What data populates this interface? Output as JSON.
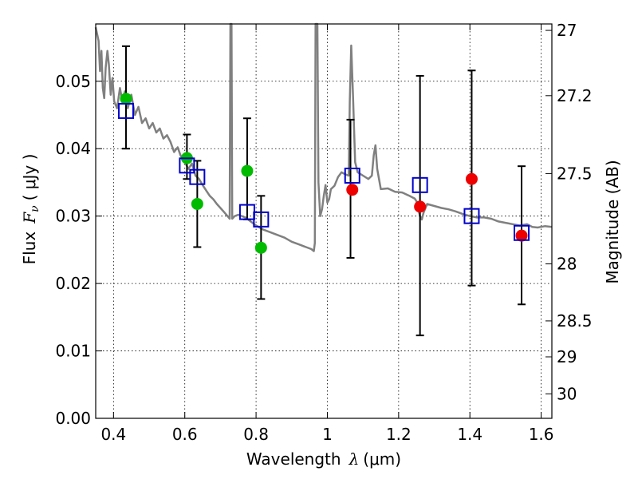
{
  "chart_data": {
    "type": "scatter",
    "xlabel_prefix": "Wavelength",
    "xlabel_symbol": "λ",
    "xlabel_unit": "(μm)",
    "ylabel_prefix": "Flux",
    "ylabel_symbol": "F",
    "ylabel_subscript": "ν",
    "ylabel_unit": "( μJy )",
    "y2label": "Magnitude (AB)",
    "xlim": [
      0.35,
      1.63
    ],
    "ylim": [
      0.0,
      0.0585
    ],
    "grid": true,
    "x_ticks": [
      0.4,
      0.6,
      0.8,
      1.0,
      1.2,
      1.4,
      1.6
    ],
    "x_tick_labels": [
      "0.4",
      "0.6",
      "0.8",
      "1",
      "1.2",
      "1.4",
      "1.6"
    ],
    "y_ticks": [
      0.0,
      0.01,
      0.02,
      0.03,
      0.04,
      0.05
    ],
    "y_tick_labels": [
      "0.00",
      "0.01",
      "0.02",
      "0.03",
      "0.04",
      "0.05"
    ],
    "y2_ticks": [
      27,
      27.2,
      27.5,
      28,
      28.5,
      29,
      30
    ],
    "y2_tick_labels": [
      "27",
      "27.2",
      "27.5",
      "28",
      "28.5",
      "29",
      "30"
    ],
    "colors": {
      "model": "#808080",
      "model_photometry": "#0000cc",
      "green_points": "#00bb00",
      "red_points": "#ee0000",
      "error_bars": "#000000"
    },
    "errorbars": [
      {
        "x": 0.435,
        "low": 0.04,
        "high": 0.0552
      },
      {
        "x": 0.606,
        "low": 0.0355,
        "high": 0.0421
      },
      {
        "x": 0.635,
        "low": 0.0254,
        "high": 0.0382
      },
      {
        "x": 0.775,
        "low": 0.0295,
        "high": 0.0445
      },
      {
        "x": 0.814,
        "low": 0.0177,
        "high": 0.033
      },
      {
        "x": 1.065,
        "low": 0.0238,
        "high": 0.0443
      },
      {
        "x": 1.26,
        "low": 0.0123,
        "high": 0.0508
      },
      {
        "x": 1.405,
        "low": 0.0197,
        "high": 0.0516
      },
      {
        "x": 1.545,
        "low": 0.0169,
        "high": 0.0374
      }
    ],
    "green_points": [
      {
        "x": 0.435,
        "y": 0.0474
      },
      {
        "x": 0.606,
        "y": 0.0386
      },
      {
        "x": 0.635,
        "y": 0.0318
      },
      {
        "x": 0.775,
        "y": 0.0367
      },
      {
        "x": 0.814,
        "y": 0.0253
      }
    ],
    "red_points": [
      {
        "x": 1.07,
        "y": 0.0339
      },
      {
        "x": 1.26,
        "y": 0.0314
      },
      {
        "x": 1.405,
        "y": 0.0355
      },
      {
        "x": 1.545,
        "y": 0.0271
      }
    ],
    "model_photometry": [
      {
        "x": 0.435,
        "y": 0.0456
      },
      {
        "x": 0.606,
        "y": 0.0375
      },
      {
        "x": 0.635,
        "y": 0.0358
      },
      {
        "x": 0.775,
        "y": 0.0306
      },
      {
        "x": 0.814,
        "y": 0.0295
      },
      {
        "x": 1.07,
        "y": 0.036
      },
      {
        "x": 1.26,
        "y": 0.0346
      },
      {
        "x": 1.405,
        "y": 0.03
      },
      {
        "x": 1.545,
        "y": 0.0275
      }
    ],
    "model_sed": [
      [
        0.35,
        0.058
      ],
      [
        0.358,
        0.056
      ],
      [
        0.362,
        0.0515
      ],
      [
        0.366,
        0.0545
      ],
      [
        0.37,
        0.049
      ],
      [
        0.374,
        0.0475
      ],
      [
        0.378,
        0.052
      ],
      [
        0.383,
        0.0545
      ],
      [
        0.387,
        0.0525
      ],
      [
        0.392,
        0.048
      ],
      [
        0.397,
        0.0505
      ],
      [
        0.402,
        0.047
      ],
      [
        0.41,
        0.046
      ],
      [
        0.418,
        0.049
      ],
      [
        0.425,
        0.047
      ],
      [
        0.432,
        0.0485
      ],
      [
        0.44,
        0.046
      ],
      [
        0.45,
        0.048
      ],
      [
        0.46,
        0.045
      ],
      [
        0.47,
        0.0462
      ],
      [
        0.48,
        0.0438
      ],
      [
        0.49,
        0.0445
      ],
      [
        0.5,
        0.043
      ],
      [
        0.51,
        0.0438
      ],
      [
        0.52,
        0.0424
      ],
      [
        0.53,
        0.043
      ],
      [
        0.54,
        0.0415
      ],
      [
        0.55,
        0.042
      ],
      [
        0.56,
        0.041
      ],
      [
        0.57,
        0.0395
      ],
      [
        0.58,
        0.0402
      ],
      [
        0.588,
        0.039
      ],
      [
        0.6,
        0.038
      ],
      [
        0.61,
        0.037
      ],
      [
        0.62,
        0.0378
      ],
      [
        0.63,
        0.036
      ],
      [
        0.64,
        0.0355
      ],
      [
        0.65,
        0.0346
      ],
      [
        0.66,
        0.0338
      ],
      [
        0.67,
        0.033
      ],
      [
        0.68,
        0.0325
      ],
      [
        0.69,
        0.0318
      ],
      [
        0.7,
        0.0312
      ],
      [
        0.71,
        0.0306
      ],
      [
        0.72,
        0.03
      ],
      [
        0.726,
        0.0296
      ],
      [
        0.728,
        0.059
      ],
      [
        0.731,
        0.059
      ],
      [
        0.733,
        0.0296
      ],
      [
        0.74,
        0.03
      ],
      [
        0.75,
        0.0302
      ],
      [
        0.76,
        0.03
      ],
      [
        0.77,
        0.0298
      ],
      [
        0.78,
        0.0294
      ],
      [
        0.79,
        0.029
      ],
      [
        0.8,
        0.0286
      ],
      [
        0.82,
        0.028
      ],
      [
        0.84,
        0.0276
      ],
      [
        0.86,
        0.0272
      ],
      [
        0.88,
        0.0268
      ],
      [
        0.9,
        0.0262
      ],
      [
        0.92,
        0.0258
      ],
      [
        0.94,
        0.0254
      ],
      [
        0.955,
        0.0251
      ],
      [
        0.962,
        0.0248
      ],
      [
        0.965,
        0.026
      ],
      [
        0.967,
        0.059
      ],
      [
        0.972,
        0.059
      ],
      [
        0.975,
        0.035
      ],
      [
        0.98,
        0.03
      ],
      [
        0.985,
        0.031
      ],
      [
        0.99,
        0.033
      ],
      [
        0.995,
        0.0346
      ],
      [
        1.0,
        0.032
      ],
      [
        1.005,
        0.0325
      ],
      [
        1.01,
        0.034
      ],
      [
        1.02,
        0.0345
      ],
      [
        1.03,
        0.0358
      ],
      [
        1.04,
        0.0365
      ],
      [
        1.05,
        0.0362
      ],
      [
        1.06,
        0.036
      ],
      [
        1.063,
        0.047
      ],
      [
        1.067,
        0.0553
      ],
      [
        1.072,
        0.048
      ],
      [
        1.078,
        0.038
      ],
      [
        1.085,
        0.0365
      ],
      [
        1.1,
        0.036
      ],
      [
        1.115,
        0.0355
      ],
      [
        1.125,
        0.036
      ],
      [
        1.13,
        0.039
      ],
      [
        1.135,
        0.0405
      ],
      [
        1.14,
        0.037
      ],
      [
        1.15,
        0.034
      ],
      [
        1.17,
        0.0341
      ],
      [
        1.19,
        0.0336
      ],
      [
        1.21,
        0.0335
      ],
      [
        1.23,
        0.033
      ],
      [
        1.245,
        0.0326
      ],
      [
        1.25,
        0.0322
      ],
      [
        1.255,
        0.031
      ],
      [
        1.26,
        0.03
      ],
      [
        1.265,
        0.0295
      ],
      [
        1.27,
        0.0305
      ],
      [
        1.28,
        0.0318
      ],
      [
        1.3,
        0.0315
      ],
      [
        1.32,
        0.0312
      ],
      [
        1.34,
        0.031
      ],
      [
        1.36,
        0.0307
      ],
      [
        1.38,
        0.0303
      ],
      [
        1.4,
        0.03
      ],
      [
        1.42,
        0.0298
      ],
      [
        1.44,
        0.0298
      ],
      [
        1.46,
        0.0296
      ],
      [
        1.48,
        0.0292
      ],
      [
        1.5,
        0.029
      ],
      [
        1.52,
        0.0288
      ],
      [
        1.54,
        0.0286
      ],
      [
        1.56,
        0.0288
      ],
      [
        1.575,
        0.0284
      ],
      [
        1.59,
        0.0283
      ],
      [
        1.61,
        0.0285
      ],
      [
        1.63,
        0.0284
      ]
    ]
  }
}
